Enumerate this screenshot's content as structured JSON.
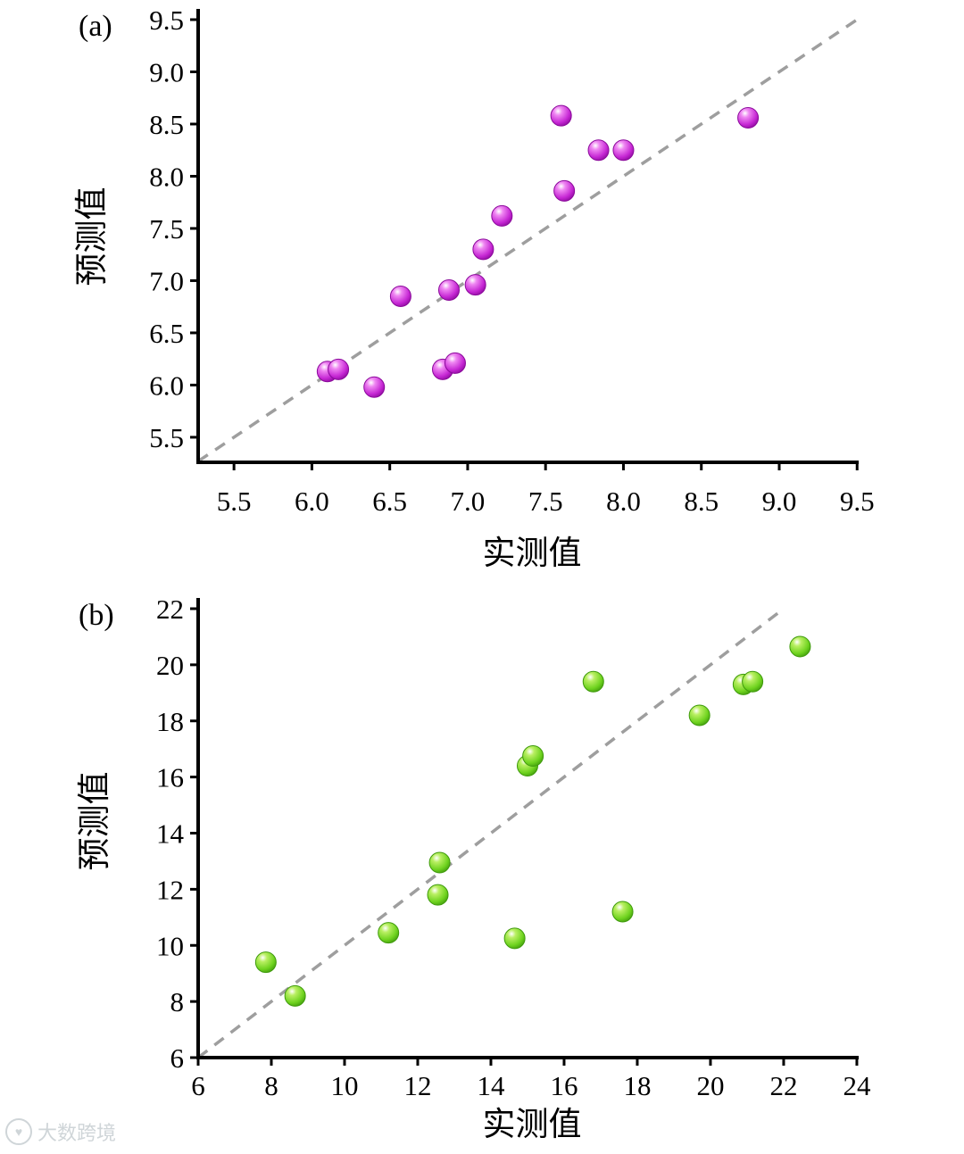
{
  "watermark": {
    "icon_glyph": "♥",
    "text": "大数跨境"
  },
  "chart_data": [
    {
      "id": "a",
      "type": "scatter",
      "panel_label": "(a)",
      "xlabel": "实测值",
      "ylabel": "预测值",
      "xlim": [
        5.27,
        9.51
      ],
      "ylim": [
        5.26,
        9.5
      ],
      "xticks": [
        5.5,
        6.0,
        6.5,
        7.0,
        7.5,
        8.0,
        8.5,
        9.0,
        9.5
      ],
      "xtick_labels": [
        "5.5",
        "6.0",
        "6.5",
        "7.0",
        "7.5",
        "8.0",
        "8.5",
        "9.0",
        "9.5"
      ],
      "yticks": [
        5.5,
        6.0,
        6.5,
        7.0,
        7.5,
        8.0,
        8.5,
        9.0,
        9.5
      ],
      "ytick_labels": [
        "5.5",
        "6.0",
        "6.5",
        "7.0",
        "7.5",
        "8.0",
        "8.5",
        "9.0",
        "9.5"
      ],
      "grid": false,
      "legend": false,
      "identity_line": {
        "color": "#9e9e9e",
        "dash": "13 10"
      },
      "marker": {
        "shape": "sphere",
        "radius": 11.5,
        "light": "#ef86f2",
        "fill": "#c627d4",
        "dark": "#8b0a9b"
      },
      "points": [
        [
          6.1,
          6.13
        ],
        [
          6.17,
          6.15
        ],
        [
          6.4,
          5.98
        ],
        [
          6.57,
          6.85
        ],
        [
          6.84,
          6.15
        ],
        [
          6.92,
          6.21
        ],
        [
          6.88,
          6.91
        ],
        [
          7.05,
          6.96
        ],
        [
          7.1,
          7.3
        ],
        [
          7.22,
          7.62
        ],
        [
          7.6,
          8.58
        ],
        [
          7.62,
          7.86
        ],
        [
          7.84,
          8.25
        ],
        [
          8.0,
          8.25
        ],
        [
          8.8,
          8.56
        ]
      ]
    },
    {
      "id": "b",
      "type": "scatter",
      "panel_label": "(b)",
      "xlabel": "实测值",
      "ylabel": "预测值",
      "xlim": [
        6,
        24.05
      ],
      "ylim": [
        6,
        22
      ],
      "xticks": [
        6,
        8,
        10,
        12,
        14,
        16,
        18,
        20,
        22,
        24
      ],
      "xtick_labels": [
        "6",
        "8",
        "10",
        "12",
        "14",
        "16",
        "18",
        "20",
        "22",
        "24"
      ],
      "yticks": [
        6,
        8,
        10,
        12,
        14,
        16,
        18,
        20,
        22
      ],
      "ytick_labels": [
        "6",
        "8",
        "10",
        "12",
        "14",
        "16",
        "18",
        "20",
        "22"
      ],
      "grid": false,
      "legend": false,
      "identity_line": {
        "color": "#9e9e9e",
        "dash": "13 10"
      },
      "marker": {
        "shape": "sphere",
        "radius": 11.5,
        "light": "#b9ef62",
        "fill": "#6fd31f",
        "dark": "#3f9a0c"
      },
      "points": [
        [
          7.85,
          9.4
        ],
        [
          8.65,
          8.2
        ],
        [
          11.2,
          10.45
        ],
        [
          12.6,
          12.95
        ],
        [
          12.55,
          11.8
        ],
        [
          14.65,
          10.25
        ],
        [
          15.0,
          16.4
        ],
        [
          15.15,
          16.75
        ],
        [
          16.8,
          19.4
        ],
        [
          17.6,
          11.2
        ],
        [
          19.7,
          18.2
        ],
        [
          20.9,
          19.3
        ],
        [
          21.15,
          19.4
        ],
        [
          22.45,
          20.65
        ]
      ]
    }
  ]
}
